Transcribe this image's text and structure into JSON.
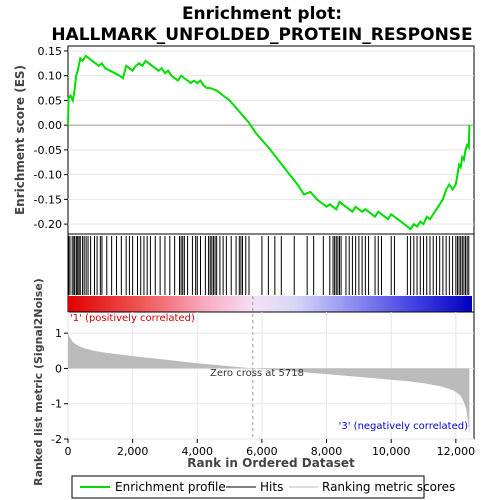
{
  "title_line1": "Enrichment plot:",
  "title_line2": "HALLMARK_UNFOLDED_PROTEIN_RESPONSE",
  "chart_data": [
    {
      "type": "line",
      "panel": "enrichment",
      "ylabel": "Enrichment score (ES)",
      "xlim": [
        0,
        12500
      ],
      "ylim": [
        -0.22,
        0.16
      ],
      "yticks": [
        -0.2,
        -0.15,
        -0.1,
        -0.05,
        0.0,
        0.05,
        0.1,
        0.15
      ],
      "ytick_labels": [
        "-0.20",
        "-0.15",
        "-0.10",
        "-0.05",
        "0.00",
        "0.05",
        "0.10",
        "0.15"
      ],
      "series": [
        {
          "name": "Enrichment profile",
          "color": "#00dd00",
          "x": [
            0,
            20,
            80,
            150,
            200,
            250,
            300,
            380,
            450,
            550,
            650,
            750,
            850,
            950,
            1050,
            1150,
            1300,
            1450,
            1600,
            1700,
            1800,
            1900,
            2000,
            2100,
            2200,
            2300,
            2400,
            2500,
            2600,
            2700,
            2800,
            2900,
            3000,
            3100,
            3200,
            3300,
            3400,
            3500,
            3600,
            3700,
            3800,
            3900,
            4000,
            4100,
            4200,
            4300,
            4400,
            4600,
            4800,
            5000,
            5200,
            5400,
            5600,
            5800,
            6000,
            6200,
            6500,
            6800,
            7100,
            7300,
            7500,
            7700,
            7900,
            8000,
            8100,
            8200,
            8300,
            8400,
            8500,
            8600,
            8700,
            8800,
            8900,
            9000,
            9100,
            9200,
            9300,
            9400,
            9500,
            9600,
            9700,
            9800,
            9900,
            10000,
            10100,
            10200,
            10300,
            10400,
            10500,
            10600,
            10700,
            10800,
            10900,
            11000,
            11100,
            11200,
            11300,
            11400,
            11500,
            11600,
            11700,
            11800,
            11900,
            12000,
            12050,
            12100,
            12150,
            12200,
            12250,
            12300,
            12350,
            12400,
            12420
          ],
          "y": [
            0.0,
            0.055,
            0.06,
            0.05,
            0.07,
            0.1,
            0.11,
            0.135,
            0.13,
            0.14,
            0.135,
            0.13,
            0.125,
            0.12,
            0.125,
            0.115,
            0.11,
            0.105,
            0.1,
            0.095,
            0.12,
            0.115,
            0.11,
            0.12,
            0.125,
            0.12,
            0.13,
            0.125,
            0.12,
            0.115,
            0.11,
            0.115,
            0.105,
            0.11,
            0.1,
            0.095,
            0.09,
            0.1,
            0.095,
            0.09,
            0.085,
            0.09,
            0.085,
            0.09,
            0.08,
            0.075,
            0.075,
            0.07,
            0.06,
            0.05,
            0.035,
            0.02,
            0.005,
            -0.015,
            -0.03,
            -0.045,
            -0.07,
            -0.095,
            -0.12,
            -0.14,
            -0.135,
            -0.15,
            -0.16,
            -0.165,
            -0.16,
            -0.165,
            -0.17,
            -0.155,
            -0.16,
            -0.165,
            -0.17,
            -0.175,
            -0.165,
            -0.17,
            -0.175,
            -0.17,
            -0.175,
            -0.18,
            -0.185,
            -0.175,
            -0.18,
            -0.185,
            -0.19,
            -0.18,
            -0.185,
            -0.19,
            -0.195,
            -0.2,
            -0.205,
            -0.21,
            -0.2,
            -0.205,
            -0.195,
            -0.2,
            -0.185,
            -0.19,
            -0.18,
            -0.17,
            -0.16,
            -0.15,
            -0.13,
            -0.12,
            -0.13,
            -0.12,
            -0.1,
            -0.08,
            -0.085,
            -0.065,
            -0.07,
            -0.05,
            -0.04,
            -0.045,
            0.0
          ]
        }
      ]
    },
    {
      "type": "bar",
      "panel": "hits",
      "name": "Hits",
      "xlim": [
        0,
        12500
      ],
      "hit_positions": [
        20,
        60,
        130,
        180,
        210,
        260,
        300,
        340,
        380,
        450,
        500,
        560,
        620,
        700,
        820,
        900,
        1000,
        1050,
        1200,
        1350,
        1500,
        1650,
        1800,
        1900,
        2000,
        2150,
        2250,
        2350,
        2450,
        2550,
        2700,
        2850,
        3000,
        3150,
        3300,
        3450,
        3500,
        3550,
        3600,
        3700,
        3850,
        3950,
        4000,
        4100,
        4250,
        4350,
        4400,
        4450,
        4500,
        4550,
        4600,
        4700,
        4800,
        4900,
        5050,
        5200,
        5300,
        5350,
        5400,
        5500,
        5600,
        6000,
        6200,
        6400,
        6600,
        7000,
        7400,
        7600,
        7900,
        8100,
        8200,
        8250,
        8300,
        8350,
        8400,
        8450,
        8600,
        8700,
        8800,
        8900,
        9000,
        9100,
        9200,
        9300,
        9500,
        9600,
        9700,
        10000,
        10100,
        10500,
        10600,
        10700,
        10800,
        10900,
        11000,
        11100,
        11200,
        11300,
        11400,
        11500,
        11600,
        11700,
        11800,
        11900,
        12000,
        12050,
        12100,
        12150,
        12200,
        12250,
        12300,
        12350,
        12400
      ]
    },
    {
      "type": "area",
      "panel": "ranked_list",
      "name": "Ranking metric scores",
      "ylabel": "Ranked list metric (Signal2Noise)",
      "xlabel": "Rank in Ordered Dataset",
      "xlim": [
        0,
        12500
      ],
      "ylim": [
        -2,
        1.6
      ],
      "yticks": [
        -2,
        -1,
        0,
        1
      ],
      "xticks": [
        0,
        2000,
        4000,
        6000,
        8000,
        10000,
        12000
      ],
      "x": [
        0,
        50,
        150,
        300,
        500,
        800,
        1200,
        2000,
        3000,
        4000,
        5000,
        5718,
        6500,
        7500,
        8500,
        9500,
        10500,
        11000,
        11500,
        11800,
        12000,
        12150,
        12250,
        12320,
        12380,
        12420
      ],
      "y": [
        1.0,
        0.9,
        0.75,
        0.65,
        0.57,
        0.5,
        0.44,
        0.35,
        0.25,
        0.15,
        0.06,
        0.0,
        -0.05,
        -0.12,
        -0.2,
        -0.28,
        -0.36,
        -0.42,
        -0.5,
        -0.58,
        -0.66,
        -0.78,
        -0.95,
        -1.15,
        -1.5,
        -1.9
      ],
      "zero_cross_label": "Zero cross at 5718",
      "zero_cross": 5718,
      "pos_label": "'1' (positively correlated)",
      "neg_label": "'3' (negatively correlated)"
    }
  ],
  "legend": {
    "items": [
      {
        "label": "Enrichment profile",
        "color": "#00dd00"
      },
      {
        "label": "Hits",
        "color": "#000000"
      },
      {
        "label": "Ranking metric scores",
        "color": "#bbbbbb"
      }
    ]
  }
}
